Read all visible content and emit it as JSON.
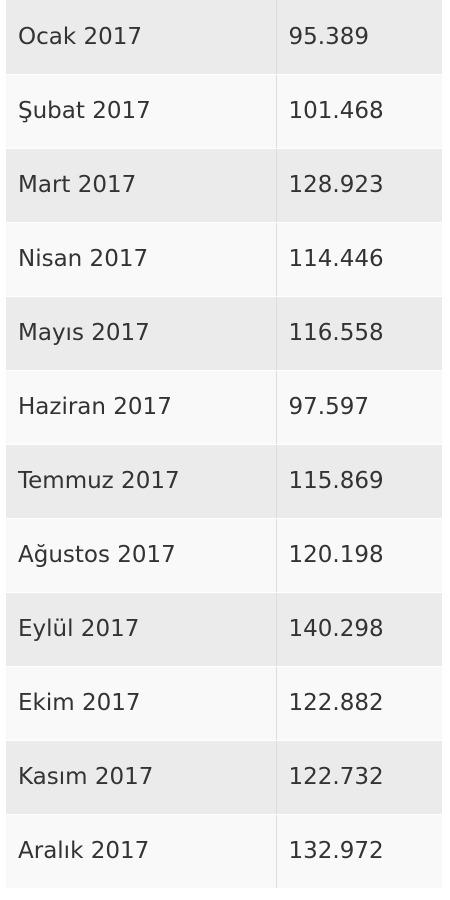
{
  "table": {
    "rows": [
      [
        "Ocak 2017",
        "95.389"
      ],
      [
        "Şubat 2017",
        "101.468"
      ],
      [
        "Mart 2017",
        "128.923"
      ],
      [
        "Nisan 2017",
        "114.446"
      ],
      [
        "Mayıs 2017",
        "116.558"
      ],
      [
        "Haziran 2017",
        "97.597"
      ],
      [
        "Temmuz 2017",
        "115.869"
      ],
      [
        "Ağustos 2017",
        "120.198"
      ],
      [
        "Eylül 2017",
        "140.298"
      ],
      [
        "Ekim 2017",
        "122.882"
      ],
      [
        "Kasım 2017",
        "122.732"
      ],
      [
        "Aralık 2017",
        "132.972"
      ]
    ]
  }
}
